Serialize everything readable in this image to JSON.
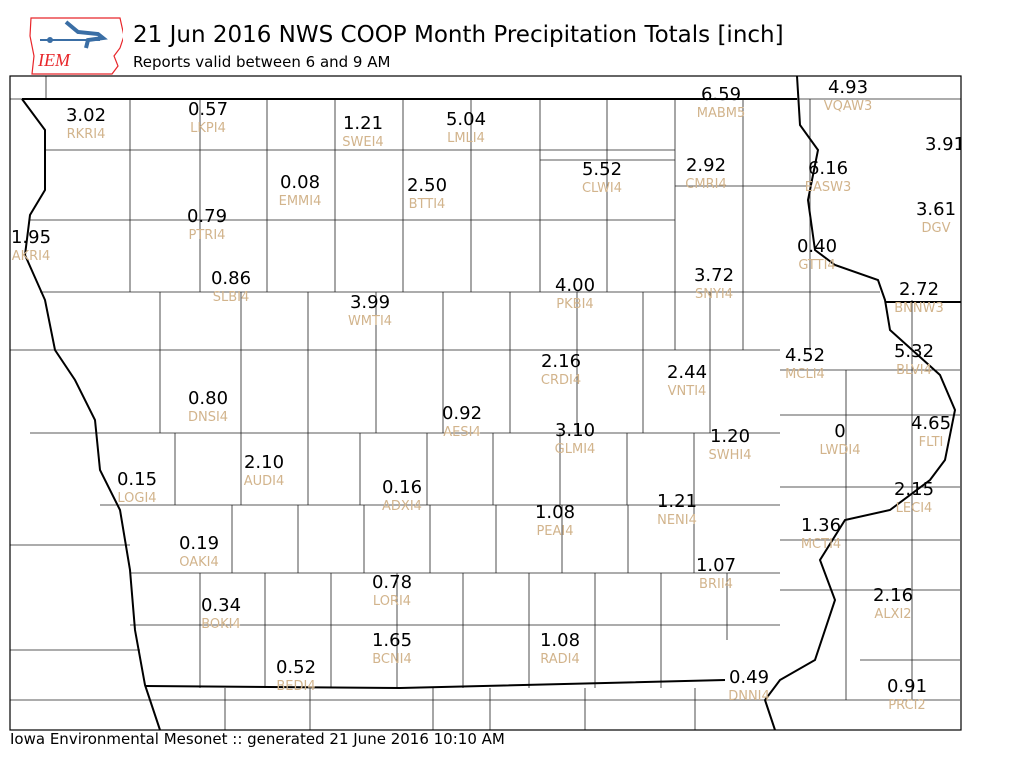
{
  "header": {
    "title": "21 Jun 2016 NWS COOP Month Precipitation Totals [inch]",
    "subtitle": "Reports valid between 6 and 9 AM",
    "logo_text": "IEM"
  },
  "footer": "Iowa Environmental Mesonet :: generated 21 June 2016 10:10 AM",
  "colors": {
    "value": "#000000",
    "station_label": "#d2b48c",
    "logo_outline": "#e8262a",
    "logo_icon": "#3a6ea5"
  },
  "map": {
    "region": "Iowa",
    "units": "inch",
    "stations": [
      {
        "id": "RKRI4",
        "value": "3.02"
      },
      {
        "id": "LKPI4",
        "value": "0.57"
      },
      {
        "id": "SWEI4",
        "value": "1.21"
      },
      {
        "id": "LMLI4",
        "value": "5.04"
      },
      {
        "id": "MABM5",
        "value": "6.59"
      },
      {
        "id": "VQAW3",
        "value": "4.93"
      },
      {
        "id": "",
        "value": "3.91"
      },
      {
        "id": "EMMI4",
        "value": "0.08"
      },
      {
        "id": "BTTI4",
        "value": "2.50"
      },
      {
        "id": "CLWI4",
        "value": "5.52"
      },
      {
        "id": "CMRI4",
        "value": "2.92"
      },
      {
        "id": "EASW3",
        "value": "6.16"
      },
      {
        "id": "DGV",
        "value": "3.61"
      },
      {
        "id": "PTRI4",
        "value": "0.79"
      },
      {
        "id": "AKRI4",
        "value": "1.95"
      },
      {
        "id": "GTTI4",
        "value": "0.40"
      },
      {
        "id": "SLBI4",
        "value": "0.86"
      },
      {
        "id": "WMTI4",
        "value": "3.99"
      },
      {
        "id": "PKBI4",
        "value": "4.00"
      },
      {
        "id": "SNYI4",
        "value": "3.72"
      },
      {
        "id": "BNNW3",
        "value": "2.72"
      },
      {
        "id": "CRDI4",
        "value": "2.16"
      },
      {
        "id": "VNTI4",
        "value": "2.44"
      },
      {
        "id": "MCLI4",
        "value": "4.52"
      },
      {
        "id": "BLVI4",
        "value": "5.32"
      },
      {
        "id": "DNSI4",
        "value": "0.80"
      },
      {
        "id": "AESI4",
        "value": "0.92"
      },
      {
        "id": "GLMI4",
        "value": "3.10"
      },
      {
        "id": "SWHI4",
        "value": "1.20"
      },
      {
        "id": "LWDI4",
        "value": "0"
      },
      {
        "id": "FLTI",
        "value": "4.65"
      },
      {
        "id": "AUDI4",
        "value": "2.10"
      },
      {
        "id": "LOGI4",
        "value": "0.15"
      },
      {
        "id": "ADXI4",
        "value": "0.16"
      },
      {
        "id": "PEAI4",
        "value": "1.08"
      },
      {
        "id": "NENI4",
        "value": "1.21"
      },
      {
        "id": "LECI4",
        "value": "2.15"
      },
      {
        "id": "MCTI4",
        "value": "1.36"
      },
      {
        "id": "OAKI4",
        "value": "0.19"
      },
      {
        "id": "BRII4",
        "value": "1.07"
      },
      {
        "id": "ALXI2",
        "value": "2.16"
      },
      {
        "id": "LORI4",
        "value": "0.78"
      },
      {
        "id": "BOKI4",
        "value": "0.34"
      },
      {
        "id": "BCNI4",
        "value": "1.65"
      },
      {
        "id": "RADI4",
        "value": "1.08"
      },
      {
        "id": "BEDI4",
        "value": "0.52"
      },
      {
        "id": "DNNI4",
        "value": "0.49"
      },
      {
        "id": "PRCI2",
        "value": "0.91"
      }
    ]
  }
}
